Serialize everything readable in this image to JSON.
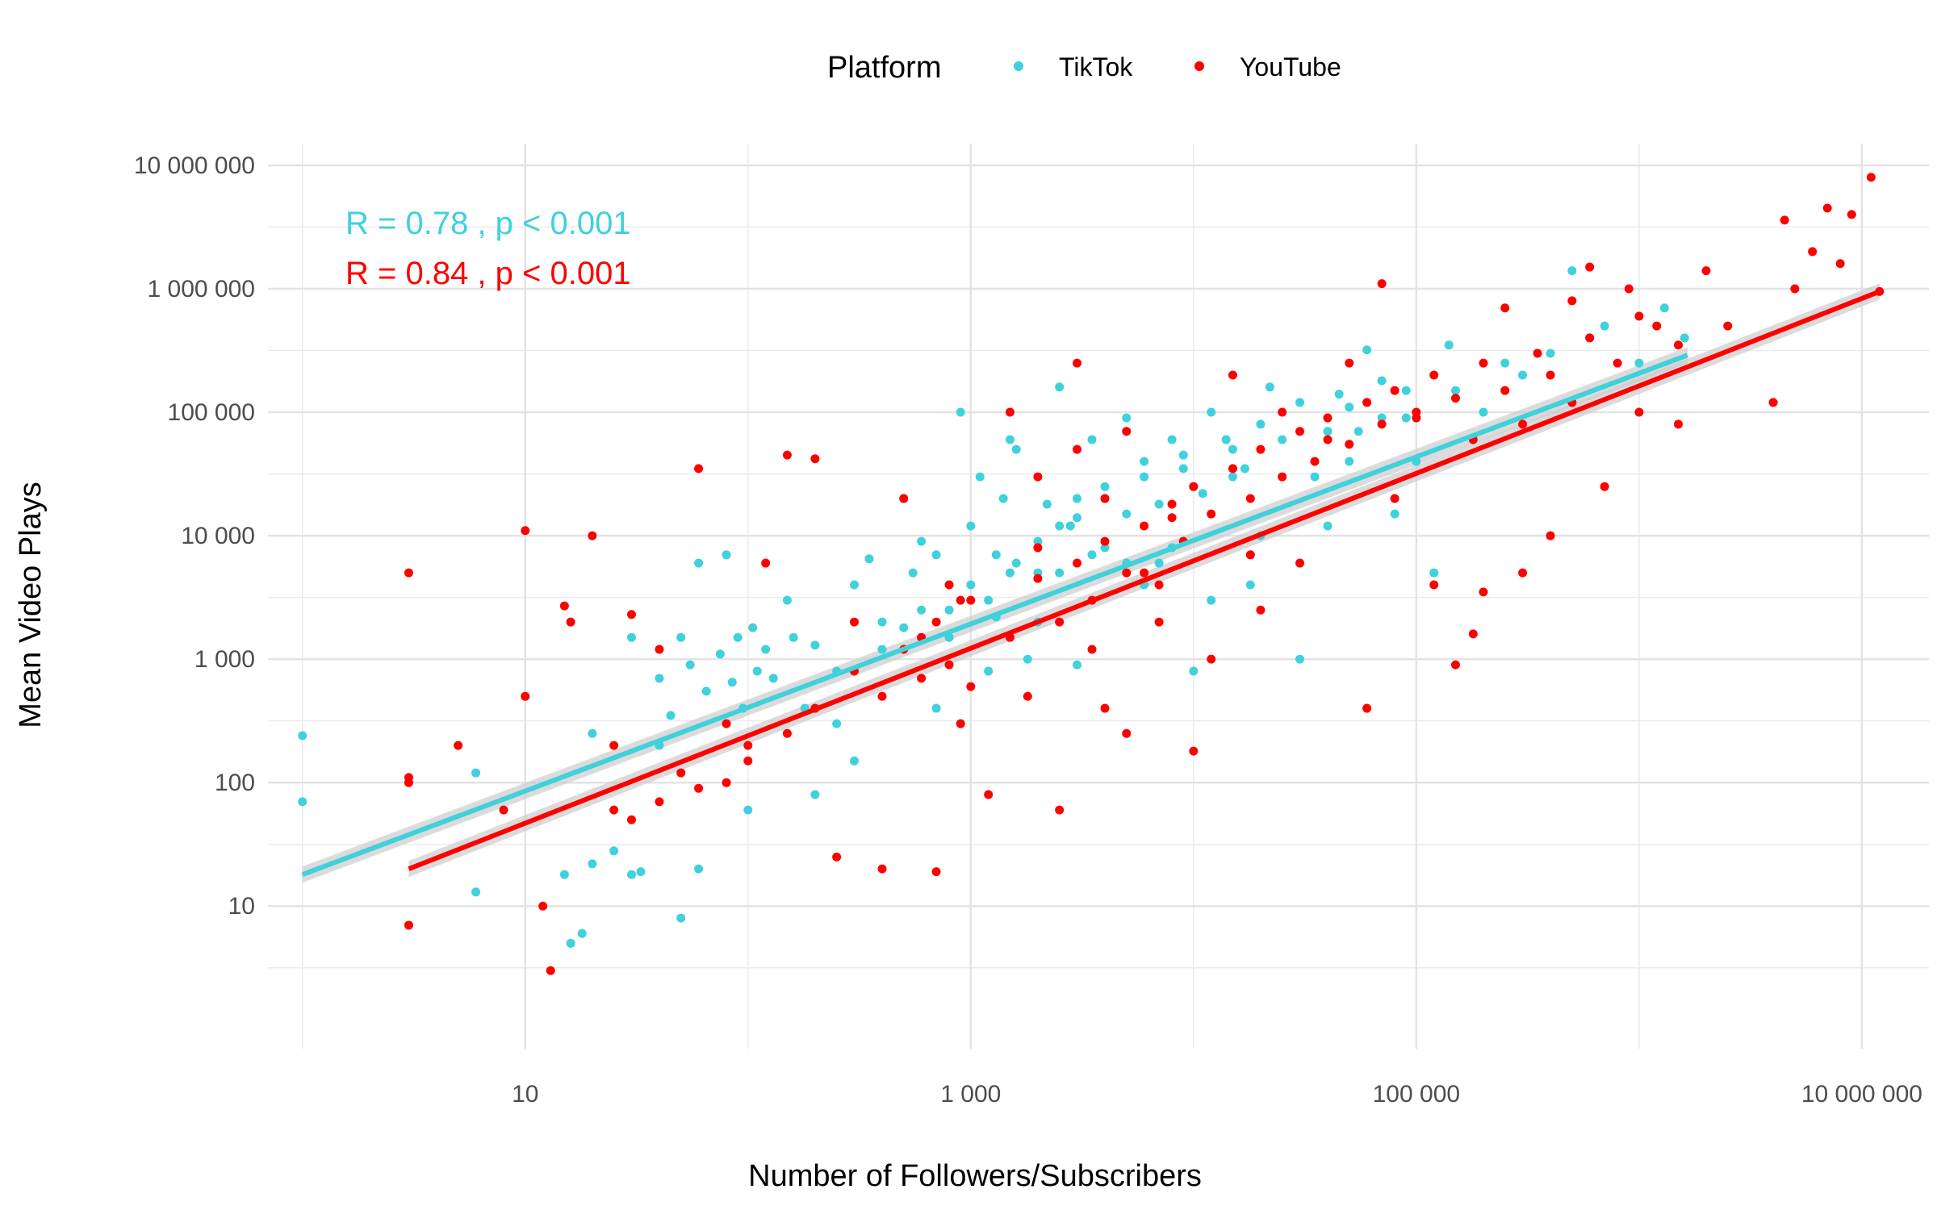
{
  "chart_data": {
    "type": "scatter",
    "xlabel": "Number of Followers/Subscribers",
    "ylabel": "Mean Video Plays",
    "x_scale": "log10",
    "y_scale": "log10",
    "xlim": [
      0.7,
      20000000
    ],
    "ylim": [
      0.7,
      15000000
    ],
    "x_ticks": [
      {
        "value": 10,
        "label": "10"
      },
      {
        "value": 1000,
        "label": "1 000"
      },
      {
        "value": 100000,
        "label": "100 000"
      },
      {
        "value": 10000000,
        "label": "10 000 000"
      }
    ],
    "y_ticks": [
      {
        "value": 10,
        "label": "10"
      },
      {
        "value": 100,
        "label": "100"
      },
      {
        "value": 1000,
        "label": "1 000"
      },
      {
        "value": 10000,
        "label": "10 000"
      },
      {
        "value": 100000,
        "label": "100 000"
      },
      {
        "value": 1000000,
        "label": "1 000 000"
      },
      {
        "value": 10000000,
        "label": "10 000 000"
      }
    ],
    "grid": true,
    "legend": {
      "title": "Platform",
      "position": "top"
    },
    "annotations": [
      {
        "text": "R = 0.78 , p < 0.001",
        "series": "TikTok"
      },
      {
        "text": "R = 0.84 , p < 0.001",
        "series": "YouTube"
      }
    ],
    "series": [
      {
        "name": "TikTok",
        "color": "#3fd1dc",
        "fit": {
          "x_range": [
            1,
            1650000
          ],
          "y_start": 18,
          "y_end": 290000
        },
        "points": [
          [
            1,
            240
          ],
          [
            1,
            70
          ],
          [
            6,
            120
          ],
          [
            6,
            13
          ],
          [
            15,
            18
          ],
          [
            16,
            5
          ],
          [
            18,
            6
          ],
          [
            20,
            22
          ],
          [
            25,
            28
          ],
          [
            30,
            18
          ],
          [
            33,
            19
          ],
          [
            50,
            8
          ],
          [
            60,
            20
          ],
          [
            20,
            250
          ],
          [
            30,
            1500
          ],
          [
            40,
            200
          ],
          [
            50,
            1500
          ],
          [
            60,
            6000
          ],
          [
            80,
            7000
          ],
          [
            90,
            1500
          ],
          [
            110,
            800
          ],
          [
            120,
            1200
          ],
          [
            150,
            3000
          ],
          [
            200,
            1300
          ],
          [
            250,
            300
          ],
          [
            300,
            4000
          ],
          [
            350,
            6500
          ],
          [
            400,
            2000
          ],
          [
            500,
            1800
          ],
          [
            550,
            5000
          ],
          [
            600,
            9000
          ],
          [
            700,
            400
          ],
          [
            800,
            2500
          ],
          [
            900,
            100000
          ],
          [
            1000,
            12000
          ],
          [
            1100,
            30000
          ],
          [
            1200,
            3000
          ],
          [
            1300,
            7000
          ],
          [
            1400,
            20000
          ],
          [
            1500,
            60000
          ],
          [
            1600,
            50000
          ],
          [
            1800,
            1000
          ],
          [
            2000,
            5000
          ],
          [
            2200,
            18000
          ],
          [
            2500,
            160000
          ],
          [
            2800,
            12000
          ],
          [
            3000,
            900
          ],
          [
            3500,
            60000
          ],
          [
            4000,
            25000
          ],
          [
            5000,
            90000
          ],
          [
            6000,
            4000
          ],
          [
            7000,
            6000
          ],
          [
            8000,
            60000
          ],
          [
            9000,
            35000
          ],
          [
            10000,
            800
          ],
          [
            12000,
            100000
          ],
          [
            15000,
            30000
          ],
          [
            18000,
            4000
          ],
          [
            20000,
            10000
          ],
          [
            22000,
            160000
          ],
          [
            25000,
            60000
          ],
          [
            30000,
            1000
          ],
          [
            35000,
            30000
          ],
          [
            40000,
            12000
          ],
          [
            45000,
            140000
          ],
          [
            50000,
            110000
          ],
          [
            55000,
            70000
          ],
          [
            60000,
            320000
          ],
          [
            70000,
            180000
          ],
          [
            80000,
            15000
          ],
          [
            90000,
            90000
          ],
          [
            100000,
            40000
          ],
          [
            120000,
            5000
          ],
          [
            140000,
            350000
          ],
          [
            150000,
            150000
          ],
          [
            200000,
            100000
          ],
          [
            250000,
            250000
          ],
          [
            300000,
            200000
          ],
          [
            400000,
            300000
          ],
          [
            500000,
            1400000
          ],
          [
            600000,
            400000
          ],
          [
            700000,
            500000
          ],
          [
            1300000,
            700000
          ],
          [
            1600000,
            400000
          ],
          [
            1000000,
            250000
          ],
          [
            900,
            300
          ],
          [
            1200,
            800
          ],
          [
            700,
            7000
          ],
          [
            500,
            20000
          ],
          [
            1500,
            5000
          ],
          [
            2000,
            2000
          ],
          [
            2500,
            12000
          ],
          [
            3000,
            20000
          ],
          [
            4000,
            8000
          ],
          [
            5000,
            15000
          ],
          [
            6000,
            40000
          ],
          [
            8000,
            8000
          ],
          [
            10000,
            25000
          ],
          [
            12000,
            3000
          ],
          [
            15000,
            50000
          ],
          [
            300,
            150
          ],
          [
            200,
            80
          ],
          [
            100,
            60
          ],
          [
            180,
            400
          ],
          [
            250,
            800
          ],
          [
            400,
            1200
          ],
          [
            600,
            2500
          ],
          [
            800,
            1500
          ],
          [
            1000,
            4000
          ],
          [
            1300,
            2200
          ],
          [
            1600,
            6000
          ],
          [
            2000,
            9000
          ],
          [
            2500,
            5000
          ],
          [
            3000,
            14000
          ],
          [
            3500,
            7000
          ],
          [
            4000,
            20000
          ],
          [
            5000,
            6000
          ],
          [
            6000,
            30000
          ],
          [
            7000,
            18000
          ],
          [
            9000,
            45000
          ],
          [
            11000,
            22000
          ],
          [
            14000,
            60000
          ],
          [
            17000,
            35000
          ],
          [
            20000,
            80000
          ],
          [
            25000,
            30000
          ],
          [
            30000,
            120000
          ],
          [
            40000,
            70000
          ],
          [
            50000,
            40000
          ],
          [
            70000,
            90000
          ],
          [
            90000,
            150000
          ],
          [
            40,
            700
          ],
          [
            45,
            350
          ],
          [
            55,
            900
          ],
          [
            65,
            550
          ],
          [
            75,
            1100
          ],
          [
            85,
            650
          ],
          [
            95,
            400
          ],
          [
            105,
            1800
          ],
          [
            130,
            700
          ],
          [
            160,
            1500
          ]
        ]
      },
      {
        "name": "YouTube",
        "color": "#ff0000",
        "fit": {
          "x_range": [
            3,
            12000000
          ],
          "y_start": 20,
          "y_end": 950000
        },
        "points": [
          [
            3,
            5000
          ],
          [
            3,
            100
          ],
          [
            3,
            110
          ],
          [
            3,
            7
          ],
          [
            5,
            200
          ],
          [
            8,
            60
          ],
          [
            10,
            11000
          ],
          [
            10,
            500
          ],
          [
            12,
            10
          ],
          [
            13,
            3
          ],
          [
            15,
            2700
          ],
          [
            16,
            2000
          ],
          [
            20,
            10000
          ],
          [
            25,
            200
          ],
          [
            30,
            2300
          ],
          [
            40,
            1200
          ],
          [
            60,
            35000
          ],
          [
            80,
            300
          ],
          [
            100,
            200
          ],
          [
            120,
            6000
          ],
          [
            150,
            45000
          ],
          [
            200,
            42000
          ],
          [
            250,
            25
          ],
          [
            300,
            2000
          ],
          [
            400,
            20
          ],
          [
            500,
            20000
          ],
          [
            600,
            1500
          ],
          [
            700,
            19
          ],
          [
            800,
            4000
          ],
          [
            900,
            300
          ],
          [
            1000,
            600
          ],
          [
            1200,
            80
          ],
          [
            1500,
            100000
          ],
          [
            1800,
            500
          ],
          [
            2000,
            8000
          ],
          [
            2500,
            60
          ],
          [
            3000,
            250000
          ],
          [
            3500,
            1200
          ],
          [
            4000,
            400
          ],
          [
            5000,
            250
          ],
          [
            6000,
            5000
          ],
          [
            7000,
            2000
          ],
          [
            8000,
            14000
          ],
          [
            10000,
            180
          ],
          [
            12000,
            1000
          ],
          [
            15000,
            200000
          ],
          [
            18000,
            7000
          ],
          [
            20000,
            2500
          ],
          [
            25000,
            100000
          ],
          [
            30000,
            6000
          ],
          [
            40000,
            60000
          ],
          [
            50000,
            250000
          ],
          [
            60000,
            400
          ],
          [
            70000,
            1100000
          ],
          [
            80000,
            20000
          ],
          [
            100000,
            90000
          ],
          [
            120000,
            4000
          ],
          [
            150000,
            900
          ],
          [
            180000,
            1600
          ],
          [
            200000,
            3500
          ],
          [
            250000,
            700000
          ],
          [
            300000,
            5000
          ],
          [
            400000,
            10000
          ],
          [
            500000,
            800000
          ],
          [
            600000,
            1500000
          ],
          [
            700000,
            25000
          ],
          [
            900000,
            1000000
          ],
          [
            1000000,
            100000
          ],
          [
            1200000,
            500000
          ],
          [
            1500000,
            80000
          ],
          [
            2000000,
            1400000
          ],
          [
            2500000,
            500000
          ],
          [
            4000000,
            120000
          ],
          [
            4500000,
            3600000
          ],
          [
            5000000,
            1000000
          ],
          [
            6000000,
            2000000
          ],
          [
            7000000,
            4500000
          ],
          [
            8000000,
            1600000
          ],
          [
            9000000,
            4000000
          ],
          [
            11000000,
            8000000
          ],
          [
            12000000,
            950000
          ],
          [
            1000,
            3000
          ],
          [
            1500,
            1500
          ],
          [
            2000,
            4500
          ],
          [
            2500,
            2000
          ],
          [
            3000,
            6000
          ],
          [
            3500,
            3000
          ],
          [
            4000,
            9000
          ],
          [
            5000,
            5000
          ],
          [
            6000,
            12000
          ],
          [
            7000,
            4000
          ],
          [
            8000,
            18000
          ],
          [
            9000,
            9000
          ],
          [
            10000,
            25000
          ],
          [
            12000,
            15000
          ],
          [
            15000,
            35000
          ],
          [
            18000,
            20000
          ],
          [
            20000,
            50000
          ],
          [
            25000,
            30000
          ],
          [
            30000,
            70000
          ],
          [
            35000,
            40000
          ],
          [
            40000,
            90000
          ],
          [
            50000,
            55000
          ],
          [
            60000,
            120000
          ],
          [
            70000,
            80000
          ],
          [
            80000,
            150000
          ],
          [
            100000,
            100000
          ],
          [
            120000,
            200000
          ],
          [
            150000,
            130000
          ],
          [
            180000,
            60000
          ],
          [
            200000,
            250000
          ],
          [
            250000,
            150000
          ],
          [
            300000,
            80000
          ],
          [
            350000,
            300000
          ],
          [
            400000,
            200000
          ],
          [
            500000,
            120000
          ],
          [
            600000,
            400000
          ],
          [
            800000,
            250000
          ],
          [
            1000000,
            600000
          ],
          [
            1500000,
            350000
          ],
          [
            300,
            800
          ],
          [
            400,
            500
          ],
          [
            500,
            1200
          ],
          [
            600,
            700
          ],
          [
            700,
            2000
          ],
          [
            800,
            900
          ],
          [
            900,
            3000
          ],
          [
            200,
            400
          ],
          [
            150,
            250
          ],
          [
            100,
            150
          ],
          [
            80,
            100
          ],
          [
            60,
            90
          ],
          [
            50,
            120
          ],
          [
            40,
            70
          ],
          [
            30,
            50
          ],
          [
            25,
            60
          ],
          [
            2000,
            30000
          ],
          [
            3000,
            50000
          ],
          [
            4000,
            20000
          ],
          [
            5000,
            70000
          ]
        ]
      }
    ]
  }
}
